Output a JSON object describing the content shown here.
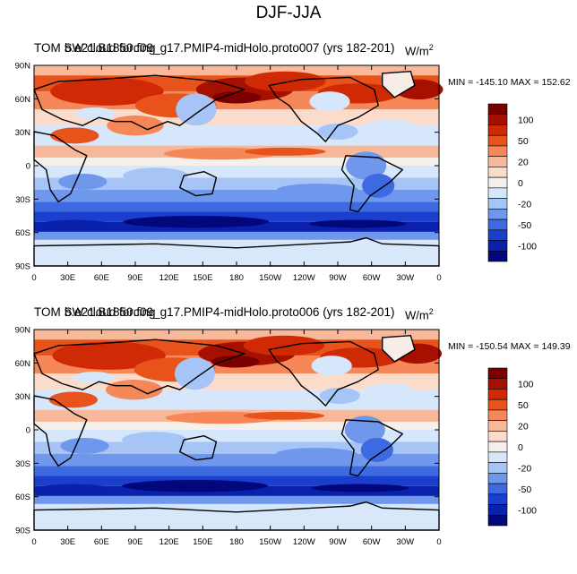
{
  "figure": {
    "title": "DJF-JJA"
  },
  "panels": [
    {
      "title_a": "TOM SW cloud forcing",
      "title_b": "b.e21.B1850.f09_g17.PMIP4-midHolo.proto007 (yrs 182-201)",
      "units": "W/m",
      "units_sup": "2",
      "minmax": "MIN = -145.10 MAX = 152.62"
    },
    {
      "title_a": "TOM SW cloud forcing",
      "title_b": "b.e21.B1850.f09_g17.PMIP4-midHolo.proto006 (yrs 182-201)",
      "units": "W/m",
      "units_sup": "2",
      "minmax": "MIN = -150.54 MAX = 149.39"
    }
  ],
  "axes": {
    "lat_labels": [
      "90N",
      "60N",
      "30N",
      "0",
      "30S",
      "60S",
      "90S"
    ],
    "lon_labels": [
      "0",
      "30E",
      "60E",
      "90E",
      "120E",
      "150E",
      "180",
      "150W",
      "120W",
      "90W",
      "60W",
      "30W",
      "0"
    ]
  },
  "colorbar": {
    "labels": [
      "100",
      "50",
      "20",
      "0",
      "-20",
      "-50",
      "-100"
    ],
    "colors": [
      "#7a0000",
      "#a51000",
      "#cf2a05",
      "#e8531c",
      "#f58758",
      "#f8b99a",
      "#fbdccb",
      "#f6f0ec",
      "#d6e6fb",
      "#a6c4f5",
      "#6f98ec",
      "#3d6ae0",
      "#1a3fcc",
      "#0a21ad",
      "#03077c"
    ]
  },
  "map_colors": {
    "land_outline": "#000000",
    "antarctica": "#d9e7fb",
    "greenland": "#f7ece6"
  }
}
